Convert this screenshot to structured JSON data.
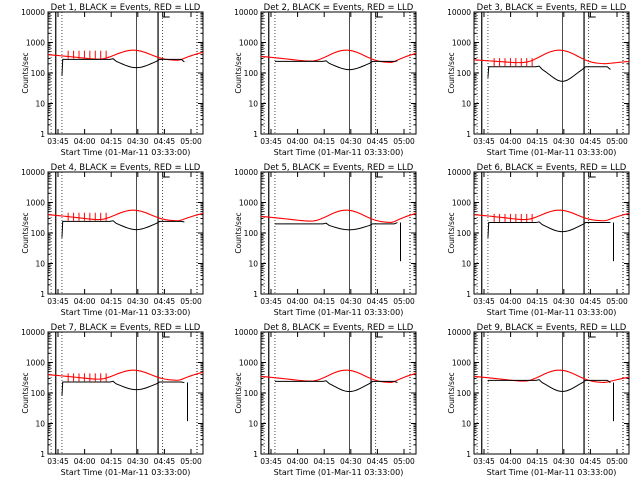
{
  "page": {
    "xlabel": "Start Time (01-Mar-11 03:33:00)",
    "ylabel": "Counts/sec",
    "xticks": [
      "03:45",
      "04:00",
      "04:15",
      "04:30",
      "04:45",
      "05:00"
    ],
    "yticks": [
      "1",
      "10",
      "100",
      "1000",
      "10000"
    ],
    "colors": {
      "events": "#000000",
      "lld": "#ff0000"
    }
  },
  "chart_data": [
    {
      "type": "line",
      "title": "Det 1, BLACK = Events, RED = LLD",
      "ylim": [
        1,
        10000
      ],
      "yscale": "log",
      "lld": {
        "start": 400,
        "mid": 260,
        "peak": 560,
        "end": 480
      },
      "events": {
        "plateau": 280,
        "dip": 150,
        "start": 80,
        "last": 230
      },
      "spikes": true,
      "vlines": [
        0.02,
        0.05,
        0.09,
        0.57,
        0.71,
        0.74
      ],
      "tail_drop": false
    },
    {
      "type": "line",
      "title": "Det 2, BLACK = Events, RED = LLD",
      "ylim": [
        1,
        10000
      ],
      "yscale": "log",
      "lld": {
        "start": 350,
        "mid": 220,
        "peak": 560,
        "end": 440
      },
      "events": {
        "plateau": 240,
        "dip": 130,
        "start": 240,
        "last": 250
      },
      "spikes": false,
      "vlines": [
        0.02,
        0.05,
        0.09,
        0.57,
        0.71,
        0.74
      ],
      "tail_drop": false
    },
    {
      "type": "line",
      "title": "Det 3, BLACK = Events, RED = LLD",
      "ylim": [
        1,
        10000
      ],
      "yscale": "log",
      "lld": {
        "start": 270,
        "mid": 200,
        "peak": 560,
        "end": 240
      },
      "events": {
        "plateau": 160,
        "dip": 50,
        "start": 70,
        "last": 130
      },
      "spikes": true,
      "vlines": [
        0.02,
        0.05,
        0.09,
        0.57,
        0.71,
        0.74
      ],
      "tail_drop": false
    },
    {
      "type": "line",
      "title": "Det 4, BLACK = Events, RED = LLD",
      "ylim": [
        1,
        10000
      ],
      "yscale": "log",
      "lld": {
        "start": 400,
        "mid": 250,
        "peak": 560,
        "end": 440
      },
      "events": {
        "plateau": 240,
        "dip": 130,
        "start": 70,
        "last": 230
      },
      "spikes": true,
      "vlines": [
        0.02,
        0.05,
        0.09,
        0.57,
        0.71,
        0.74
      ],
      "tail_drop": false
    },
    {
      "type": "line",
      "title": "Det 5, BLACK = Events, RED = LLD",
      "ylim": [
        1,
        10000
      ],
      "yscale": "log",
      "lld": {
        "start": 350,
        "mid": 220,
        "peak": 560,
        "end": 440
      },
      "events": {
        "plateau": 200,
        "dip": 130,
        "start": 200,
        "last": 220
      },
      "spikes": false,
      "vlines": [
        0.02,
        0.05,
        0.09,
        0.57,
        0.71,
        0.74
      ],
      "tail_drop": true
    },
    {
      "type": "line",
      "title": "Det 6, BLACK = Events, RED = LLD",
      "ylim": [
        1,
        10000
      ],
      "yscale": "log",
      "lld": {
        "start": 400,
        "mid": 250,
        "peak": 560,
        "end": 440
      },
      "events": {
        "plateau": 220,
        "dip": 110,
        "start": 70,
        "last": 220
      },
      "spikes": true,
      "vlines": [
        0.02,
        0.05,
        0.09,
        0.57,
        0.71,
        0.74
      ],
      "tail_drop": true
    },
    {
      "type": "line",
      "title": "Det 7, BLACK = Events, RED = LLD",
      "ylim": [
        1,
        10000
      ],
      "yscale": "log",
      "lld": {
        "start": 400,
        "mid": 260,
        "peak": 560,
        "end": 480
      },
      "events": {
        "plateau": 230,
        "dip": 130,
        "start": 80,
        "last": 220
      },
      "spikes": true,
      "vlines": [
        0.02,
        0.05,
        0.09,
        0.57,
        0.71,
        0.74
      ],
      "tail_drop": true
    },
    {
      "type": "line",
      "title": "Det 8, BLACK = Events, RED = LLD",
      "ylim": [
        1,
        10000
      ],
      "yscale": "log",
      "lld": {
        "start": 350,
        "mid": 220,
        "peak": 560,
        "end": 440
      },
      "events": {
        "plateau": 240,
        "dip": 110,
        "start": 240,
        "last": 220
      },
      "spikes": false,
      "vlines": [
        0.02,
        0.05,
        0.09,
        0.57,
        0.71,
        0.74
      ],
      "tail_drop": false
    },
    {
      "type": "line",
      "title": "Det 9, BLACK = Events, RED = LLD",
      "ylim": [
        1,
        10000
      ],
      "yscale": "log",
      "lld": {
        "start": 350,
        "mid": 220,
        "peak": 560,
        "end": 330
      },
      "events": {
        "plateau": 260,
        "dip": 110,
        "start": 240,
        "last": 220
      },
      "spikes": false,
      "vlines": [
        0.02,
        0.05,
        0.09,
        0.57,
        0.71,
        0.74
      ],
      "tail_drop": true
    }
  ]
}
